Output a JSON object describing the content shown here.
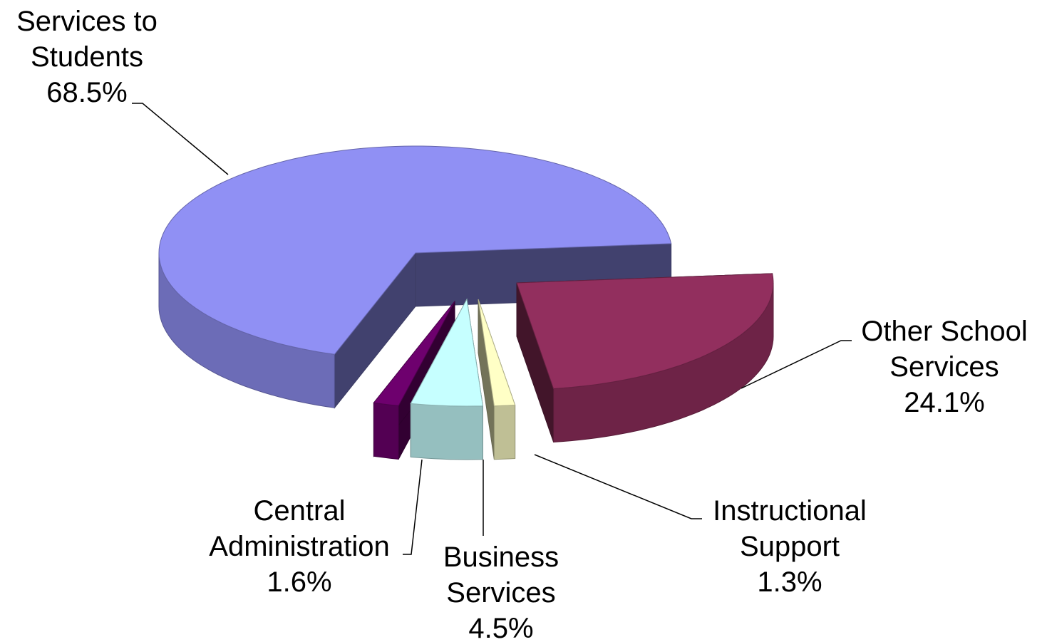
{
  "chart_data": {
    "type": "pie",
    "categories": [
      "Services to Students",
      "Other School Services",
      "Instructional Support",
      "Business Services",
      "Central Administration"
    ],
    "values": [
      68.5,
      24.1,
      1.3,
      4.5,
      1.6
    ],
    "value_labels": [
      "68.5%",
      "24.1%",
      "1.3%",
      "4.5%",
      "1.6%"
    ],
    "colors": [
      "#9090f4",
      "#922f5e",
      "#ffffc6",
      "#c6ffff",
      "#6e006e"
    ]
  }
}
